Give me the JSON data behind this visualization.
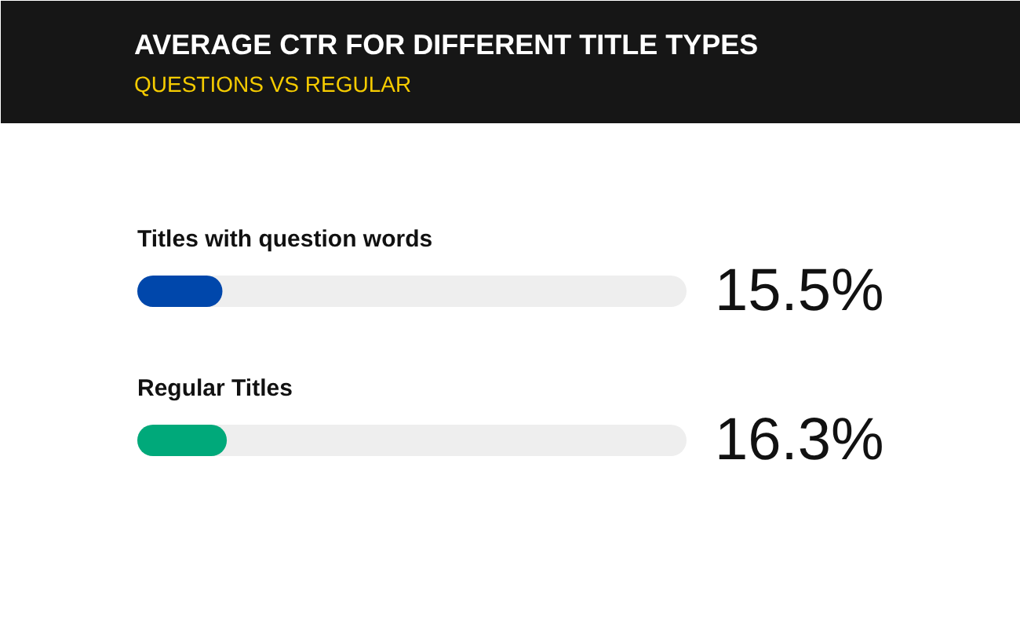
{
  "chart_data": {
    "type": "bar",
    "orientation": "horizontal",
    "title": "AVERAGE CTR FOR DIFFERENT TITLE TYPES",
    "subtitle": "QUESTIONS VS REGULAR",
    "categories": [
      "Titles with question words",
      "Regular Titles"
    ],
    "values": [
      15.5,
      16.3
    ],
    "colors": [
      "#0047ab",
      "#00a97a"
    ],
    "value_labels": [
      "15.5%",
      "16.3%"
    ],
    "xlim": [
      0,
      100
    ],
    "tick_labels": "y"
  }
}
